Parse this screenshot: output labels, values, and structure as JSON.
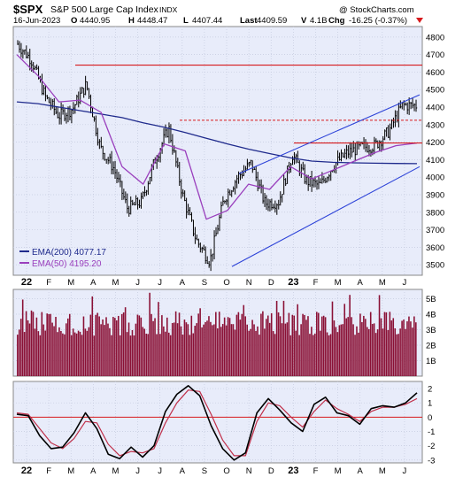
{
  "header": {
    "symbol": "$SPX",
    "name": "S&P 500 Large Cap Index",
    "exchange": "INDX",
    "copyright": "@ StockCharts.com",
    "date": "16-Jun-2023",
    "open_label": "O",
    "open": "4440.95",
    "high_label": "H",
    "high": "4448.47",
    "low_label": "L",
    "low": "4407.44",
    "last_label": "Last",
    "last": "4409.59",
    "volume_label": "V",
    "volume": "4.1B",
    "change_label": "Chg",
    "change": "-16.25 (-0.37%)"
  },
  "legend": {
    "ema200": "EMA(200) 4077.17",
    "ema50": "EMA(50) 4195.20"
  },
  "colors": {
    "background": "#e8ecfa",
    "grid": "#c4cade",
    "price_bars": "#000000",
    "ema200": "#1f2a8c",
    "ema50": "#9a3fbd",
    "resistance": "#d7191c",
    "channel": "#2d43d8",
    "volume_bars": "#8a1035",
    "momentum_line": "#000000",
    "signal_line": "#c0304a",
    "zero_line": "#d7191c",
    "down_arrow": "#d7191c"
  },
  "chart_data": [
    {
      "type": "candlestick",
      "panel": "price",
      "x_ticks": [
        "22",
        "F",
        "M",
        "A",
        "M",
        "J",
        "J",
        "A",
        "S",
        "O",
        "N",
        "D",
        "23",
        "F",
        "M",
        "A",
        "M",
        "J"
      ],
      "y_ticks": [
        3500,
        3600,
        3700,
        3800,
        3900,
        4000,
        4100,
        4200,
        4300,
        4400,
        4500,
        4600,
        4700,
        4800
      ],
      "ylim": [
        3440,
        4860
      ],
      "grid": true,
      "series": [
        {
          "name": "EMA(200) 4077.17",
          "kind": "line",
          "values": [
            4430,
            4420,
            4400,
            4380,
            4360,
            4340,
            4310,
            4285,
            4255,
            4222,
            4190,
            4160,
            4135,
            4110,
            4092,
            4085,
            4082,
            4080,
            4078,
            4077
          ]
        },
        {
          "name": "EMA(50) 4195.20",
          "kind": "line",
          "values": [
            4700,
            4580,
            4430,
            4440,
            4370,
            4060,
            3960,
            4190,
            4150,
            3760,
            3810,
            3960,
            3930,
            4060,
            3990,
            4040,
            4090,
            4140,
            4180,
            4195
          ]
        }
      ],
      "closes": [
        4760,
        4670,
        4460,
        4350,
        4390,
        4530,
        4170,
        4050,
        3820,
        3860,
        4100,
        4280,
        3900,
        3640,
        3520,
        3870,
        4000,
        4080,
        3850,
        3860,
        4130,
        3980,
        3950,
        4070,
        4140,
        4170,
        4180,
        4260,
        4410,
        4409.59
      ],
      "horizontal_lines": [
        {
          "y": 4640,
          "style": "solid"
        },
        {
          "y": 4325,
          "style": "dashed"
        },
        {
          "y": 4195,
          "style": "solid"
        }
      ],
      "channel_lines": [
        {
          "from_x": "Aug 2022",
          "from_y": 4020,
          "to_x": "Jun 2023",
          "to_y": 4470
        },
        {
          "from_x": "Oct 2022",
          "from_y": 3490,
          "to_x": "Jun 2023",
          "to_y": 4060
        }
      ]
    },
    {
      "type": "bar",
      "panel": "volume",
      "y_ticks": [
        "1B",
        "2B",
        "3B",
        "4B",
        "5B"
      ],
      "ylim": [
        0,
        5.6
      ],
      "grid": true
    },
    {
      "type": "line",
      "panel": "momentum",
      "x_ticks": [
        "22",
        "F",
        "M",
        "A",
        "M",
        "J",
        "J",
        "A",
        "S",
        "O",
        "N",
        "D",
        "23",
        "F",
        "M",
        "A",
        "M",
        "J"
      ],
      "y_ticks": [
        -3,
        -2,
        -1,
        0,
        1,
        2
      ],
      "ylim": [
        -3.2,
        2.5
      ],
      "grid": true,
      "series": [
        {
          "kind": "line",
          "values": [
            0.2,
            0.1,
            -1.3,
            -2.2,
            -2.1,
            -1.1,
            0.3,
            -0.8,
            -2.6,
            -2.9,
            -2.1,
            -2.8,
            -2.0,
            0.4,
            1.6,
            2.2,
            1.5,
            -0.6,
            -2.2,
            -3.0,
            -2.5,
            0.3,
            1.3,
            0.5,
            -0.4,
            -1.0,
            0.9,
            1.4,
            0.3,
            0.1,
            -0.5,
            0.6,
            0.8,
            0.7,
            1.0,
            1.7
          ]
        },
        {
          "kind": "line",
          "values": [
            0.3,
            0.2,
            -0.8,
            -1.8,
            -2.2,
            -1.5,
            -0.3,
            -0.4,
            -1.9,
            -2.7,
            -2.4,
            -2.5,
            -2.2,
            -0.4,
            1.0,
            1.9,
            1.8,
            0.2,
            -1.6,
            -2.7,
            -2.7,
            -0.3,
            1.0,
            0.8,
            0.0,
            -0.7,
            0.4,
            1.2,
            0.6,
            0.2,
            -0.3,
            0.4,
            0.7,
            0.7,
            0.9,
            1.3
          ]
        }
      ]
    }
  ]
}
